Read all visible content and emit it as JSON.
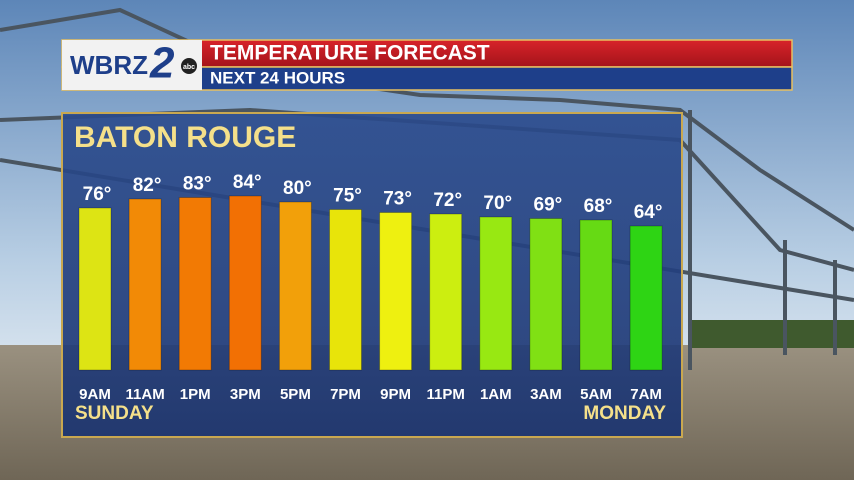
{
  "chart_data": {
    "type": "bar",
    "title": "TEMPERATURE FORECAST",
    "subtitle": "NEXT 24 HOURS",
    "logo": {
      "text": "WBRZ",
      "number": "2",
      "network": "abc"
    },
    "location": "BATON ROUGE",
    "categories": [
      "9AM",
      "11AM",
      "1PM",
      "3PM",
      "5PM",
      "7PM",
      "9PM",
      "11PM",
      "1AM",
      "3AM",
      "5AM",
      "7AM"
    ],
    "day_labels": [
      "SUNDAY",
      null,
      null,
      null,
      null,
      null,
      null,
      null,
      null,
      null,
      null,
      "MONDAY"
    ],
    "values": [
      76,
      82,
      83,
      84,
      80,
      75,
      73,
      72,
      70,
      69,
      68,
      64
    ],
    "value_labels": [
      "76°",
      "82°",
      "83°",
      "84°",
      "80°",
      "75°",
      "73°",
      "72°",
      "70°",
      "69°",
      "68°",
      "64°"
    ],
    "colors": [
      "#dde414",
      "#f28a06",
      "#f27a04",
      "#f27004",
      "#f2a00a",
      "#e8e40a",
      "#eef010",
      "#ccee10",
      "#98e812",
      "#80e014",
      "#66da14",
      "#2ed414"
    ]
  }
}
